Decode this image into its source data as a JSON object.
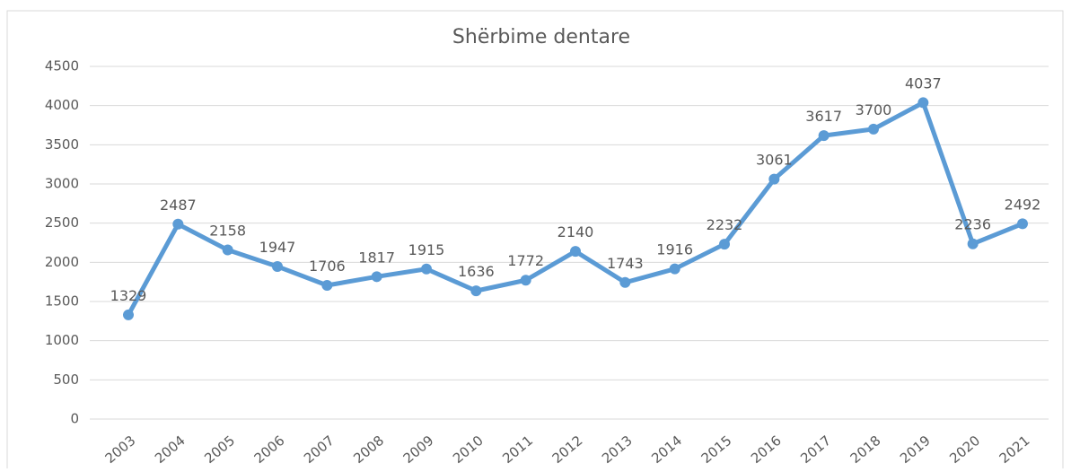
{
  "chart_data": {
    "type": "line",
    "title": "Shërbime dentare",
    "categories": [
      "2003",
      "2004",
      "2005",
      "2006",
      "2007",
      "2008",
      "2009",
      "2010",
      "2011",
      "2012",
      "2013",
      "2014",
      "2015",
      "2016",
      "2017",
      "2018",
      "2019",
      "2020",
      "2021"
    ],
    "series": [
      {
        "name": "Shërbime dentare",
        "color": "#5b9bd5",
        "values": [
          1329,
          2487,
          2158,
          1947,
          1706,
          1817,
          1915,
          1636,
          1772,
          2140,
          1743,
          1916,
          2232,
          3061,
          3617,
          3700,
          4037,
          2236,
          2492
        ]
      }
    ],
    "ylim": [
      0,
      4500
    ],
    "yticks": [
      0,
      500,
      1000,
      1500,
      2000,
      2500,
      3000,
      3500,
      4000,
      4500
    ],
    "grid": true
  }
}
